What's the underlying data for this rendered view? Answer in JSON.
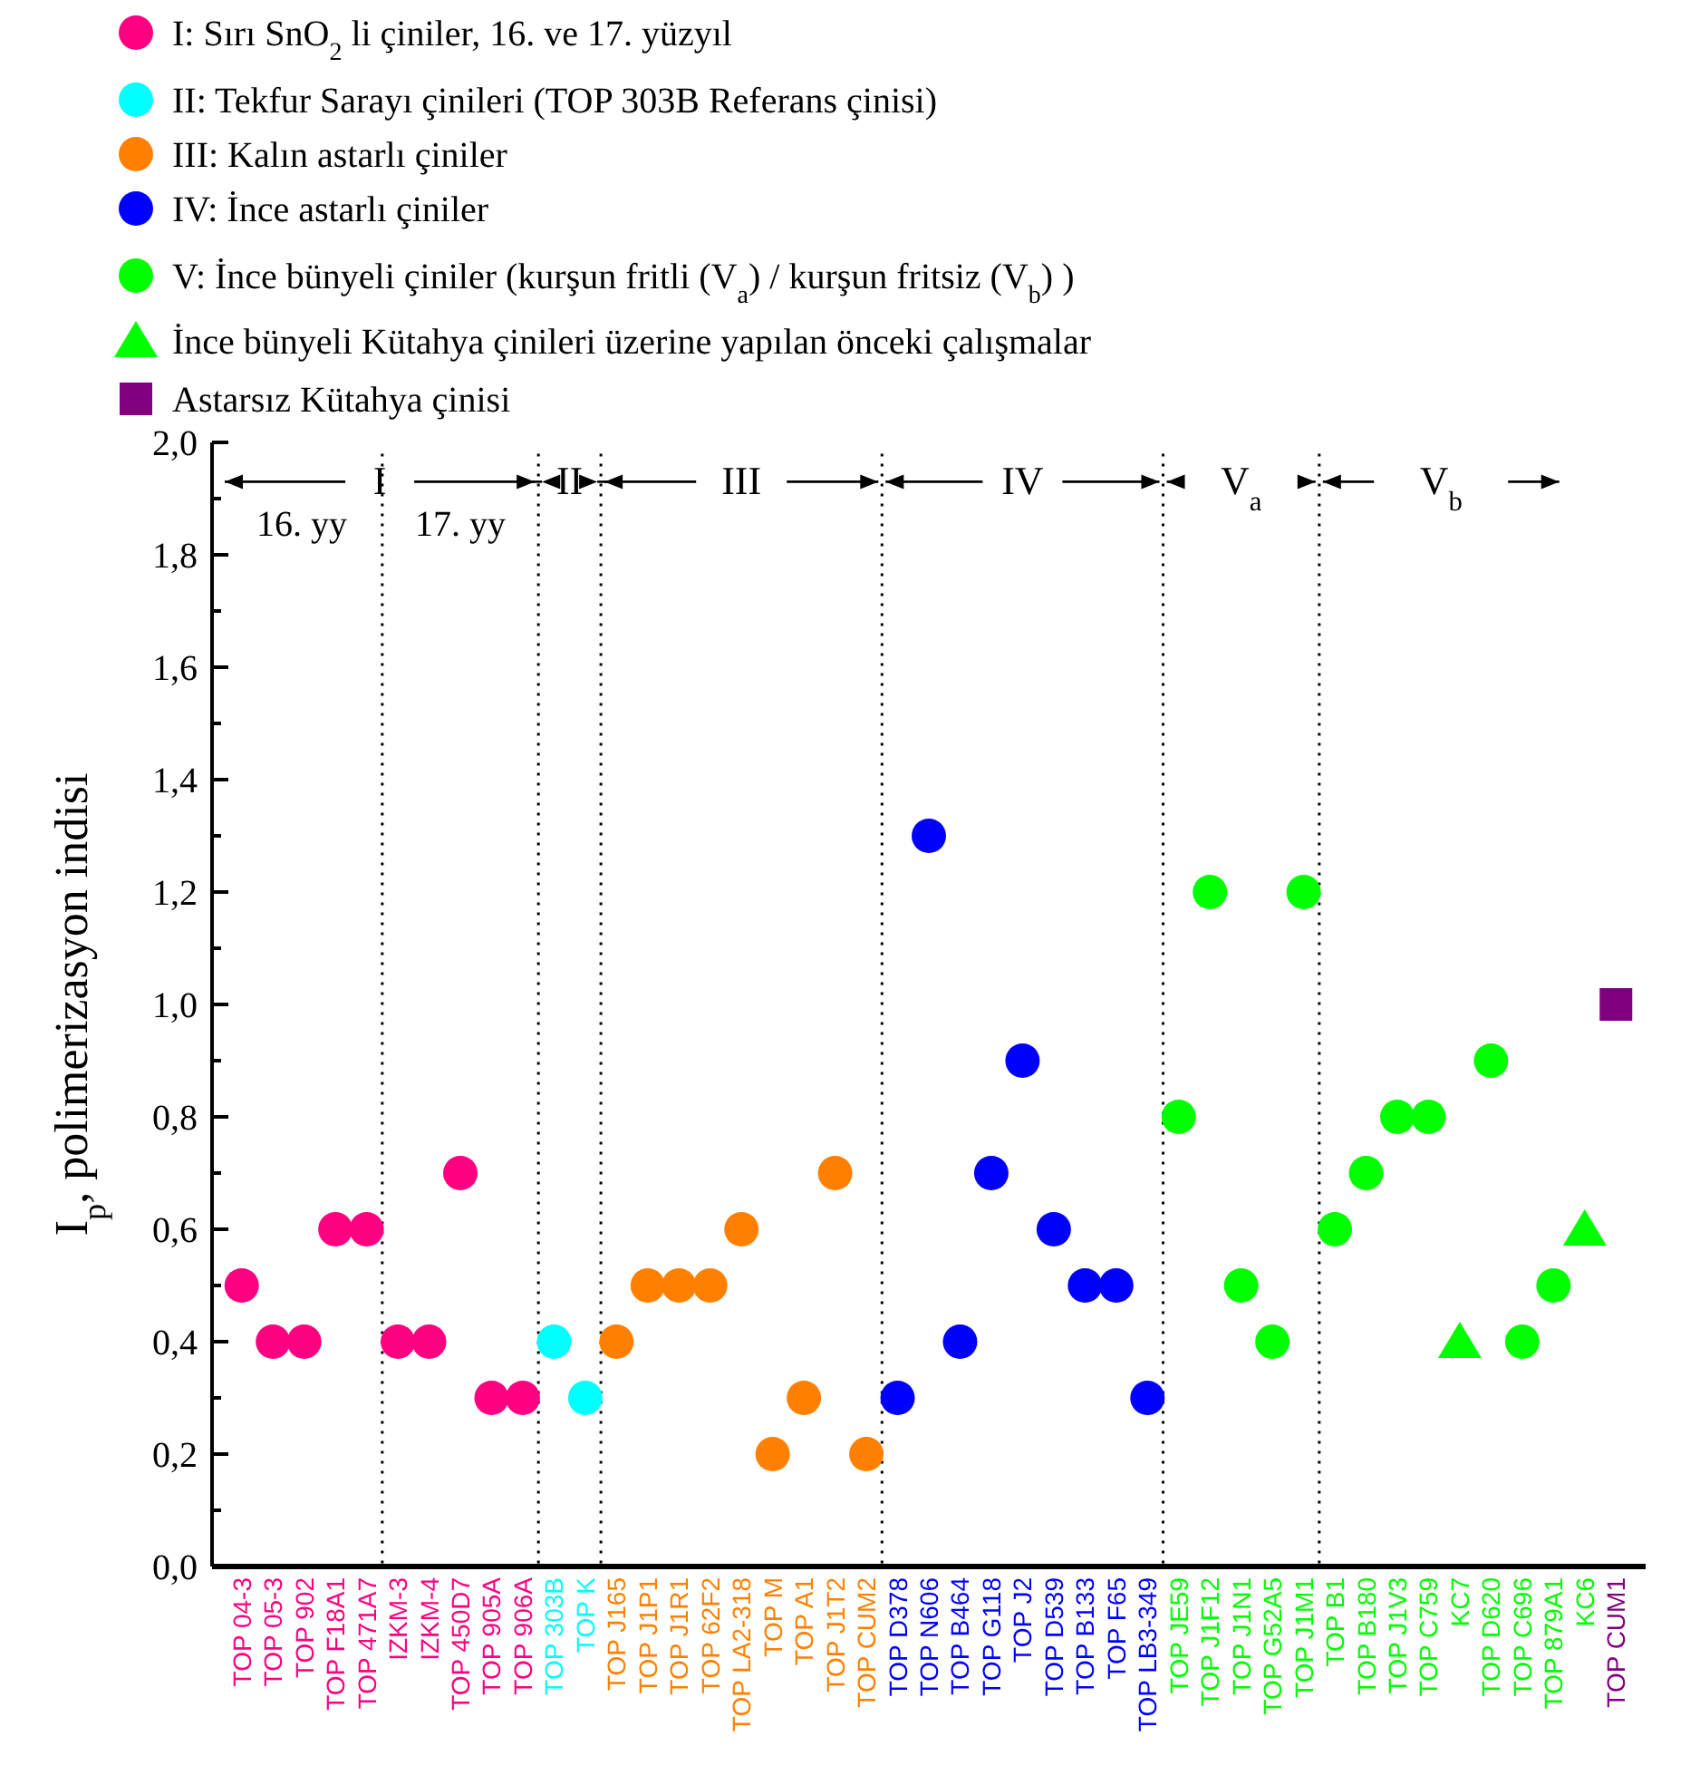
{
  "chart_data": {
    "type": "scatter",
    "ylabel": "I$_{p}$, polimerizasyon indisi",
    "categories": [
      "TOP 04-3",
      "TOP 05-3",
      "TOP 902",
      "TOP F18A1",
      "TOP 471A7",
      "IZKM-3",
      "IZKM-4",
      "TOP 450D7",
      "TOP 905A",
      "TOP 906A",
      "TOP 303B",
      "TOP K",
      "TOP J165",
      "TOP J1P1",
      "TOP J1R1",
      "TOP 62F2",
      "TOP LA2-318",
      "TOP M",
      "TOP A1",
      "TOP J1T2",
      "TOP CUM2",
      "TOP D378",
      "TOP N606",
      "TOP B464",
      "TOP G118",
      "TOP J2",
      "TOP D539",
      "TOP B133",
      "TOP F65",
      "TOP LB3-349",
      "TOP JE59",
      "TOP J1F12",
      "TOP J1N1",
      "TOP G52A5",
      "TOP J1M1",
      "TOP B1",
      "TOP B180",
      "TOP J1V3",
      "TOP C759",
      "KC7",
      "TOP D620",
      "TOP C696",
      "TOP 879A1",
      "KC6",
      "TOP CUM1"
    ],
    "series": [
      {
        "name": "I: Sırı SnO$_{2}$ li çiniler, 16. ve 17. yüzyıl",
        "color": "#ff0080",
        "marker": "circle",
        "values": [
          0.5,
          0.4,
          0.4,
          0.6,
          0.6,
          0.4,
          0.4,
          0.7,
          0.3,
          0.3,
          null,
          null,
          null,
          null,
          null,
          null,
          null,
          null,
          null,
          null,
          null,
          null,
          null,
          null,
          null,
          null,
          null,
          null,
          null,
          null,
          null,
          null,
          null,
          null,
          null,
          null,
          null,
          null,
          null,
          null,
          null,
          null,
          null,
          null,
          null
        ]
      },
      {
        "name": "II: Tekfur Sarayı çinileri (TOP 303B Referans çinisi)",
        "color": "#00ffff",
        "marker": "circle",
        "values": [
          null,
          null,
          null,
          null,
          null,
          null,
          null,
          null,
          null,
          null,
          0.4,
          0.3,
          null,
          null,
          null,
          null,
          null,
          null,
          null,
          null,
          null,
          null,
          null,
          null,
          null,
          null,
          null,
          null,
          null,
          null,
          null,
          null,
          null,
          null,
          null,
          null,
          null,
          null,
          null,
          null,
          null,
          null,
          null,
          null,
          null
        ]
      },
      {
        "name": "III: Kalın astarlı çiniler",
        "color": "#ff8000",
        "marker": "circle",
        "values": [
          null,
          null,
          null,
          null,
          null,
          null,
          null,
          null,
          null,
          null,
          null,
          null,
          0.4,
          0.5,
          0.5,
          0.5,
          0.6,
          0.2,
          0.3,
          0.7,
          0.2,
          null,
          null,
          null,
          null,
          null,
          null,
          null,
          null,
          null,
          null,
          null,
          null,
          null,
          null,
          null,
          null,
          null,
          null,
          null,
          null,
          null,
          null,
          null,
          null
        ]
      },
      {
        "name": "IV: İnce astarlı çiniler",
        "color": "#0000ff",
        "marker": "circle",
        "values": [
          null,
          null,
          null,
          null,
          null,
          null,
          null,
          null,
          null,
          null,
          null,
          null,
          null,
          null,
          null,
          null,
          null,
          null,
          null,
          null,
          null,
          0.3,
          1.3,
          0.4,
          0.7,
          0.9,
          0.6,
          0.5,
          0.5,
          0.3,
          null,
          null,
          null,
          null,
          null,
          null,
          null,
          null,
          null,
          null,
          null,
          null,
          null,
          null,
          null
        ]
      },
      {
        "name": "V: İnce bünyeli çiniler (kurşun fritli (V$_{a}$) / kurşun fritsiz (V$_{b}$) )",
        "color": "#00ff00",
        "marker": "circle",
        "values": [
          null,
          null,
          null,
          null,
          null,
          null,
          null,
          null,
          null,
          null,
          null,
          null,
          null,
          null,
          null,
          null,
          null,
          null,
          null,
          null,
          null,
          null,
          null,
          null,
          null,
          null,
          null,
          null,
          null,
          null,
          0.8,
          1.2,
          0.5,
          0.4,
          1.2,
          0.6,
          0.7,
          0.8,
          0.8,
          null,
          0.9,
          0.4,
          0.5,
          null,
          null
        ]
      },
      {
        "name": "İnce bünyeli Kütahya çinileri üzerine yapılan önceki çalışmalar",
        "color": "#00ff00",
        "marker": "triangle",
        "values": [
          null,
          null,
          null,
          null,
          null,
          null,
          null,
          null,
          null,
          null,
          null,
          null,
          null,
          null,
          null,
          null,
          null,
          null,
          null,
          null,
          null,
          null,
          null,
          null,
          null,
          null,
          null,
          null,
          null,
          null,
          null,
          null,
          null,
          null,
          null,
          null,
          null,
          null,
          null,
          0.4,
          null,
          null,
          null,
          0.6,
          null
        ]
      },
      {
        "name": "Astarsız Kütahya çinisi",
        "color": "#800080",
        "marker": "square",
        "values": [
          null,
          null,
          null,
          null,
          null,
          null,
          null,
          null,
          null,
          null,
          null,
          null,
          null,
          null,
          null,
          null,
          null,
          null,
          null,
          null,
          null,
          null,
          null,
          null,
          null,
          null,
          null,
          null,
          null,
          null,
          null,
          null,
          null,
          null,
          null,
          null,
          null,
          null,
          null,
          null,
          null,
          null,
          null,
          null,
          1.0
        ]
      }
    ],
    "ylim": [
      0,
      2.0
    ],
    "yticks": [
      {
        "value": 0,
        "label": "0,0"
      },
      {
        "value": 0.1,
        "label": null
      },
      {
        "value": 0.2,
        "label": "0,2"
      },
      {
        "value": 0.3,
        "label": null
      },
      {
        "value": 0.4,
        "label": "0,4"
      },
      {
        "value": 0.5,
        "label": null
      },
      {
        "value": 0.6,
        "label": "0,6"
      },
      {
        "value": 0.7,
        "label": null
      },
      {
        "value": 0.8,
        "label": "0,8"
      },
      {
        "value": 0.9,
        "label": null
      },
      {
        "value": 1.0,
        "label": "1,0"
      },
      {
        "value": 1.1,
        "label": null
      },
      {
        "value": 1.2,
        "label": "1,2"
      },
      {
        "value": 1.3,
        "label": null
      },
      {
        "value": 1.4,
        "label": "1,4"
      },
      {
        "value": 1.5,
        "label": null
      },
      {
        "value": 1.6,
        "label": "1,6"
      },
      {
        "value": 1.7,
        "label": null
      },
      {
        "value": 1.8,
        "label": "1,8"
      },
      {
        "value": 1.9,
        "label": null
      },
      {
        "value": 2.0,
        "label": "2,0"
      }
    ],
    "annotations": [
      "I",
      "16. yy",
      "17. yy",
      "II",
      "III",
      "IV",
      "V$_{a}$",
      "V$_{b}$"
    ],
    "legend": "top",
    "grid": false
  }
}
